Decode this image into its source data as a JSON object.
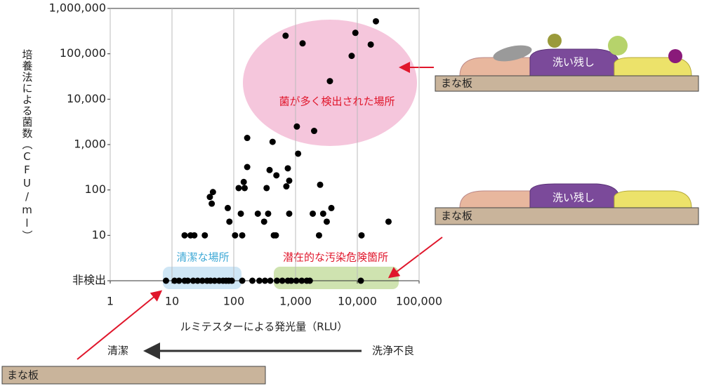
{
  "chart_data": {
    "type": "scatter",
    "xscale": "log",
    "yscale": "log",
    "xlabel": "ルミテスターによる発光量（RLU）",
    "ylabel": "培養法による菌数（CFU/ml）",
    "xlim": [
      1,
      100000
    ],
    "ylim": [
      1,
      1000000
    ],
    "xticks": [
      1,
      10,
      100,
      {
        "value": 1000,
        "label": "1,000"
      },
      {
        "value": 10000,
        "label": "10,000"
      },
      {
        "value": 100000,
        "label": "100,000"
      }
    ],
    "yticks": [
      {
        "value": 1,
        "label": "非検出"
      },
      10,
      100,
      {
        "value": 1000,
        "label": "1,000"
      },
      {
        "value": 10000,
        "label": "10,000"
      },
      {
        "value": 100000,
        "label": "100,000"
      },
      {
        "value": 1000000,
        "label": "1,000,000"
      }
    ],
    "xgrid": true,
    "color": "#000000",
    "x": [
      690,
      1300,
      20000,
      9300,
      16500,
      8100,
      3600,
      1050,
      2000,
      165,
      425,
      1100,
      165,
      380,
      490,
      750,
      790,
      145,
      150,
      120,
      2500,
      340,
      710,
      46,
      41,
      44,
      80,
      130,
      245,
      360,
      790,
      1900,
      3800,
      2800,
      85,
      310,
      3200,
      32000,
      16,
      20,
      23,
      34,
      105,
      137,
      445,
      480,
      2400,
      11700,
      8,
      11,
      13,
      16,
      18,
      22,
      26,
      31,
      37,
      42,
      49,
      58,
      67,
      75,
      83,
      93,
      137,
      200,
      260,
      320,
      390,
      500,
      610,
      750,
      850,
      1030,
      1260,
      1520,
      1700,
      11400
    ],
    "values": [
      250000,
      170000,
      520000,
      290000,
      160000,
      90000,
      25000,
      2500,
      2000,
      1400,
      1150,
      630,
      320,
      275,
      210,
      300,
      160,
      150,
      110,
      110,
      130,
      110,
      120,
      90,
      70,
      50,
      40,
      30,
      30,
      30,
      30,
      30,
      40,
      30,
      20,
      20,
      20,
      20,
      10,
      10,
      10,
      10,
      10,
      10,
      10,
      10,
      10,
      10,
      1,
      1,
      1,
      1,
      1,
      1,
      1,
      1,
      1,
      1,
      1,
      1,
      1,
      1,
      1,
      1,
      1,
      1,
      1,
      1,
      1,
      1,
      1,
      1,
      1,
      1,
      1,
      1,
      1,
      1
    ],
    "annotations": [
      "菌が多く検出された場所",
      "清潔な場所",
      "潜在的な汚染危険箇所",
      "洗い残し",
      "まな板",
      "洗い残し",
      "まな板",
      "まな板",
      "清潔",
      "洗浄不良"
    ]
  }
}
